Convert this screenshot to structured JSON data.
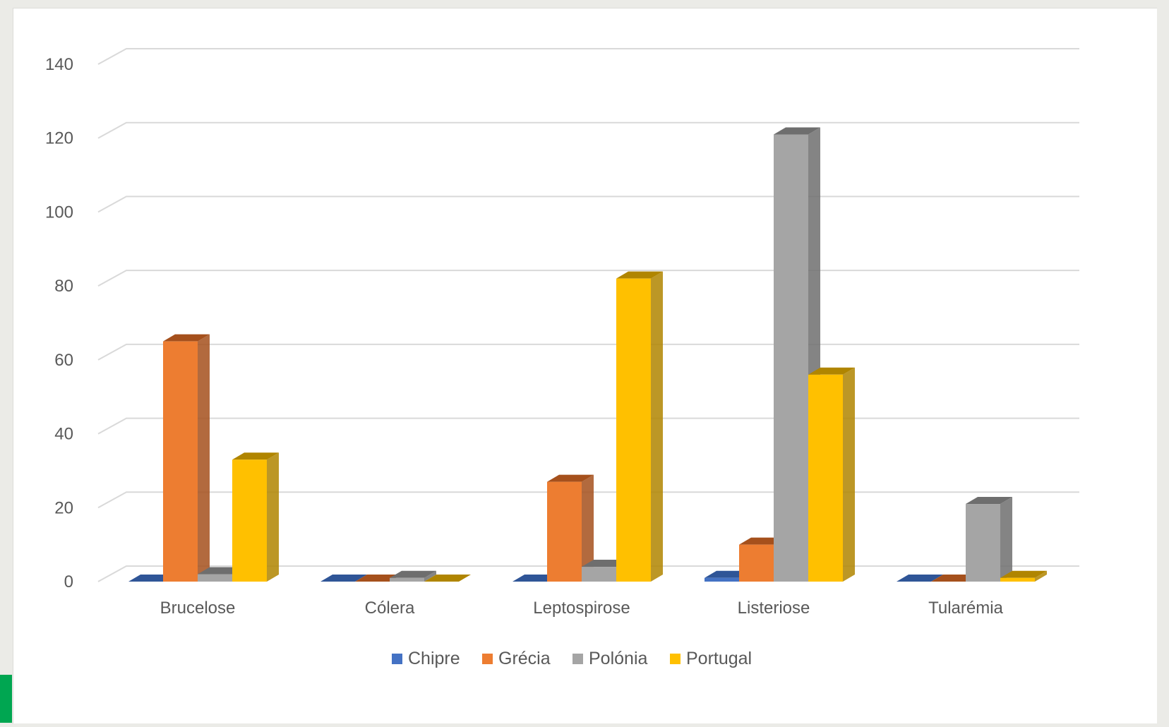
{
  "chart_data": {
    "type": "bar",
    "variant": "3d-clustered-column",
    "categories": [
      "Brucelose",
      "Cólera",
      "Leptospirose",
      "Listeriose",
      "Tularémia"
    ],
    "series": [
      {
        "name": "Chipre",
        "color": "#4472c4",
        "side_color": "#2f5597",
        "values": [
          0,
          0,
          0,
          1,
          0
        ]
      },
      {
        "name": "Grécia",
        "color": "#ed7d31",
        "side_color": "#a5501c",
        "values": [
          65,
          0,
          27,
          10,
          0
        ]
      },
      {
        "name": "Polónia",
        "color": "#a5a5a5",
        "side_color": "#6e6e6e",
        "values": [
          2,
          1,
          4,
          121,
          21
        ]
      },
      {
        "name": "Portugal",
        "color": "#ffc000",
        "side_color": "#b08500",
        "values": [
          33,
          0,
          82,
          56,
          1
        ]
      }
    ],
    "y_ticks": [
      "0",
      "20",
      "40",
      "60",
      "80",
      "100",
      "120",
      "140"
    ],
    "ylim": [
      0,
      140
    ],
    "grid": true,
    "legend_position": "bottom",
    "title": "",
    "xlabel": "",
    "ylabel": ""
  }
}
